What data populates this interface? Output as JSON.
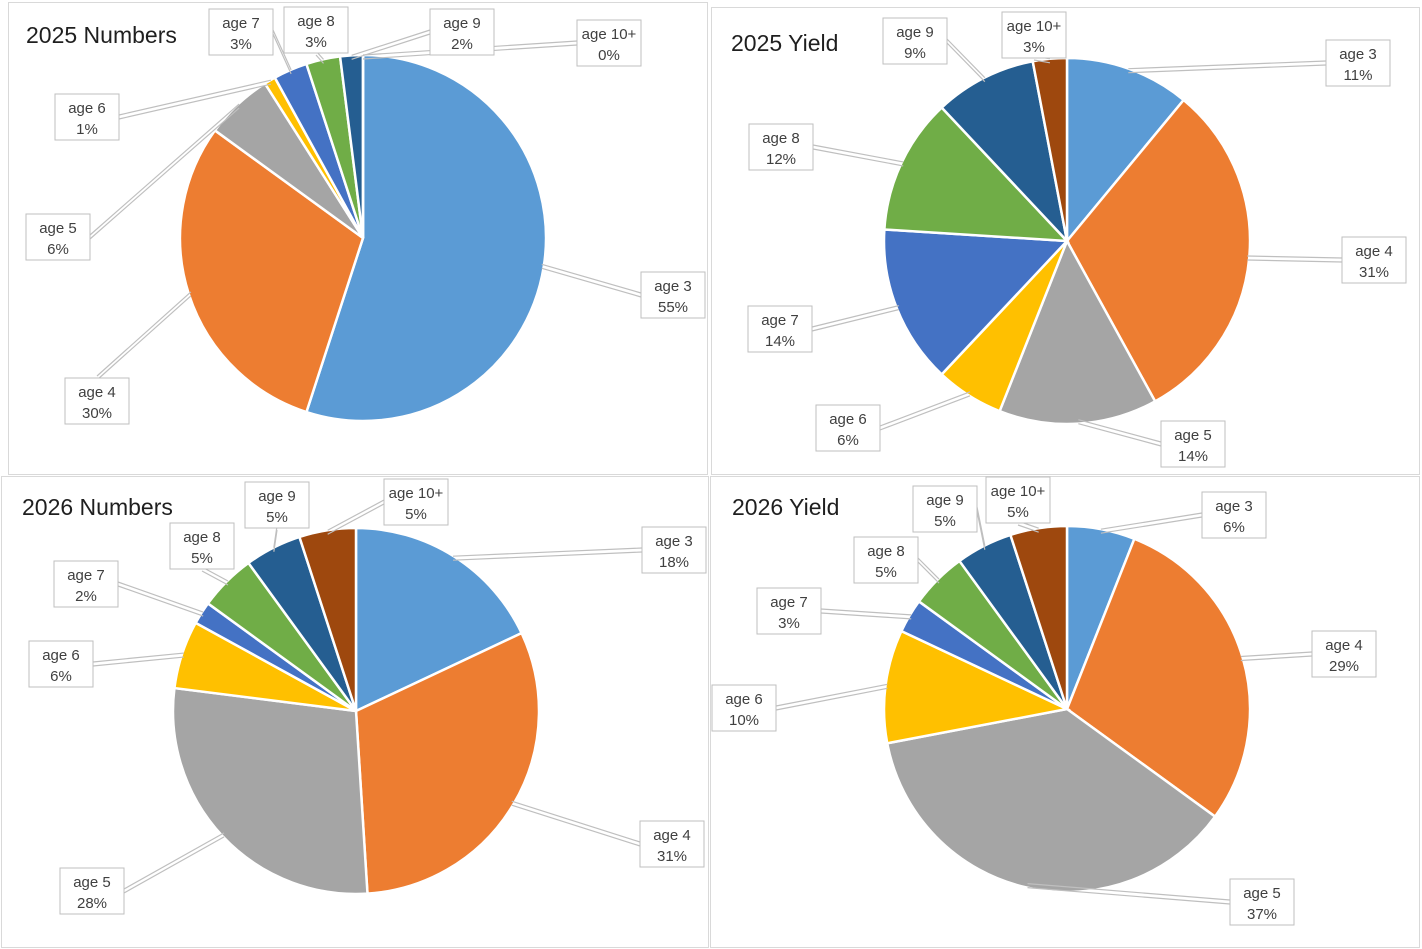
{
  "chart_data": [
    {
      "type": "pie",
      "title": "2025 Numbers",
      "categories": [
        "age 3",
        "age 4",
        "age 5",
        "age 6",
        "age 7",
        "age 8",
        "age 9",
        "age 10+"
      ],
      "values": [
        55,
        30,
        6,
        1,
        3,
        3,
        2,
        0
      ],
      "value_labels": [
        "55%",
        "30%",
        "6%",
        "1%",
        "3%",
        "3%",
        "2%",
        "0%"
      ],
      "colors": [
        "#5b9bd5",
        "#ed7d31",
        "#a5a5a5",
        "#ffc000",
        "#4472c4",
        "#70ad47",
        "#255e91",
        "#9e480e"
      ]
    },
    {
      "type": "pie",
      "title": "2025 Yield",
      "categories": [
        "age 3",
        "age 4",
        "age 5",
        "age 6",
        "age 7",
        "age 8",
        "age 9",
        "age 10+"
      ],
      "values": [
        11,
        31,
        14,
        6,
        14,
        12,
        9,
        3
      ],
      "value_labels": [
        "11%",
        "31%",
        "14%",
        "6%",
        "14%",
        "12%",
        "9%",
        "3%"
      ],
      "colors": [
        "#5b9bd5",
        "#ed7d31",
        "#a5a5a5",
        "#ffc000",
        "#4472c4",
        "#70ad47",
        "#255e91",
        "#9e480e"
      ]
    },
    {
      "type": "pie",
      "title": "2026 Numbers",
      "categories": [
        "age 3",
        "age 4",
        "age 5",
        "age 6",
        "age 7",
        "age 8",
        "age 9",
        "age 10+"
      ],
      "values": [
        18,
        31,
        28,
        6,
        2,
        5,
        5,
        5
      ],
      "value_labels": [
        "18%",
        "31%",
        "28%",
        "6%",
        "2%",
        "5%",
        "5%",
        "5%"
      ],
      "colors": [
        "#5b9bd5",
        "#ed7d31",
        "#a5a5a5",
        "#ffc000",
        "#4472c4",
        "#70ad47",
        "#255e91",
        "#9e480e"
      ]
    },
    {
      "type": "pie",
      "title": "2026 Yield",
      "categories": [
        "age 3",
        "age 4",
        "age 5",
        "age 6",
        "age 7",
        "age 8",
        "age 9",
        "age 10+"
      ],
      "values": [
        6,
        29,
        37,
        10,
        3,
        5,
        5,
        5
      ],
      "value_labels": [
        "6%",
        "29%",
        "37%",
        "10%",
        "3%",
        "5%",
        "5%",
        "5%"
      ],
      "colors": [
        "#5b9bd5",
        "#ed7d31",
        "#a5a5a5",
        "#ffc000",
        "#4472c4",
        "#70ad47",
        "#255e91",
        "#9e480e"
      ]
    }
  ]
}
